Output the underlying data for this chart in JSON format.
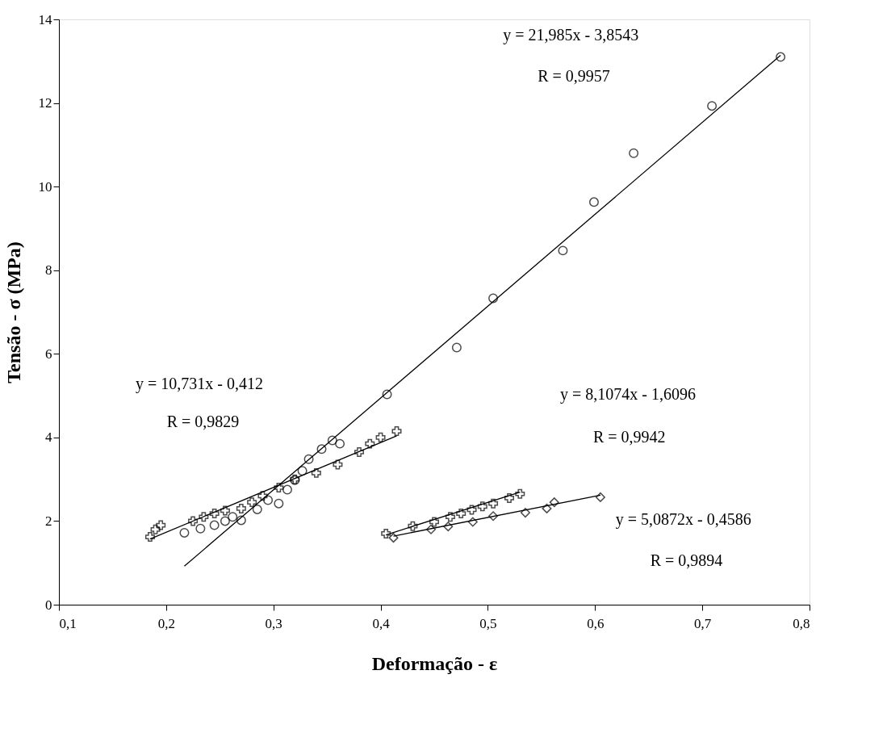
{
  "chart_data": {
    "type": "scatter",
    "xlabel": "Deformação -  ε",
    "ylabel": "Tensão - σ (MPa)",
    "xlim": [
      0.1,
      0.8
    ],
    "ylim": [
      0,
      14
    ],
    "xticks": [
      {
        "value": 0.1,
        "label": "0,1"
      },
      {
        "value": 0.2,
        "label": "0,2"
      },
      {
        "value": 0.3,
        "label": "0,3"
      },
      {
        "value": 0.4,
        "label": "0,4"
      },
      {
        "value": 0.5,
        "label": "0,5"
      },
      {
        "value": 0.6,
        "label": "0,6"
      },
      {
        "value": 0.7,
        "label": "0,7"
      },
      {
        "value": 0.8,
        "label": "0,8"
      }
    ],
    "yticks": [
      0,
      2,
      4,
      6,
      8,
      10,
      12,
      14
    ],
    "grid": false,
    "series": [
      {
        "marker": "circle",
        "color": "#000000",
        "x": [
          0.217,
          0.232,
          0.245,
          0.255,
          0.262,
          0.27,
          0.285,
          0.295,
          0.305,
          0.313,
          0.32,
          0.327,
          0.333,
          0.345,
          0.355,
          0.362,
          0.406,
          0.471,
          0.505,
          0.57,
          0.599,
          0.636,
          0.709,
          0.773
        ],
        "values": [
          1.72,
          1.82,
          1.9,
          2.0,
          2.1,
          2.02,
          2.28,
          2.5,
          2.42,
          2.75,
          2.98,
          3.2,
          3.48,
          3.72,
          3.93,
          3.85,
          5.03,
          6.15,
          7.33,
          8.47,
          9.63,
          10.8,
          11.93,
          13.1
        ]
      },
      {
        "marker": "cross",
        "color": "#000000",
        "x": [
          0.185,
          0.19,
          0.195,
          0.225,
          0.235,
          0.245,
          0.255,
          0.27,
          0.28,
          0.29,
          0.305,
          0.32,
          0.34,
          0.36,
          0.38,
          0.39,
          0.4,
          0.415
        ],
        "values": [
          1.62,
          1.8,
          1.9,
          2.0,
          2.1,
          2.18,
          2.25,
          2.3,
          2.45,
          2.6,
          2.8,
          3.0,
          3.15,
          3.35,
          3.65,
          3.85,
          4.0,
          4.15
        ]
      },
      {
        "marker": "cross",
        "color": "#000000",
        "x": [
          0.405,
          0.43,
          0.45,
          0.465,
          0.475,
          0.485,
          0.495,
          0.505,
          0.52,
          0.53
        ],
        "values": [
          1.7,
          1.88,
          1.98,
          2.1,
          2.18,
          2.27,
          2.35,
          2.42,
          2.55,
          2.65
        ]
      },
      {
        "marker": "diamond",
        "color": "#000000",
        "x": [
          0.412,
          0.447,
          0.463,
          0.486,
          0.505,
          0.535,
          0.555,
          0.562,
          0.605
        ],
        "values": [
          1.6,
          1.8,
          1.87,
          1.98,
          2.12,
          2.2,
          2.3,
          2.45,
          2.57
        ]
      },
      {
        "type": "line",
        "color": "#000000",
        "x": [
          0.217,
          0.773
        ],
        "values": [
          0.92,
          13.14
        ]
      },
      {
        "type": "line",
        "color": "#000000",
        "x": [
          0.185,
          0.415
        ],
        "values": [
          1.57,
          4.04
        ]
      },
      {
        "type": "line",
        "color": "#000000",
        "x": [
          0.405,
          0.53
        ],
        "values": [
          1.67,
          2.69
        ]
      },
      {
        "type": "line",
        "color": "#000000",
        "x": [
          0.412,
          0.605
        ],
        "values": [
          1.64,
          2.62
        ]
      }
    ],
    "annotations": [
      "y = 21,985x - 3,8543",
      "R  =  0,9957",
      "y = 10,731x - 0,412",
      "R  =  0,9829",
      "y = 8,1074x - 1,6096",
      "R  =  0,9942",
      "y = 5,0872x - 0,4586",
      "R  =  0,9894"
    ]
  }
}
